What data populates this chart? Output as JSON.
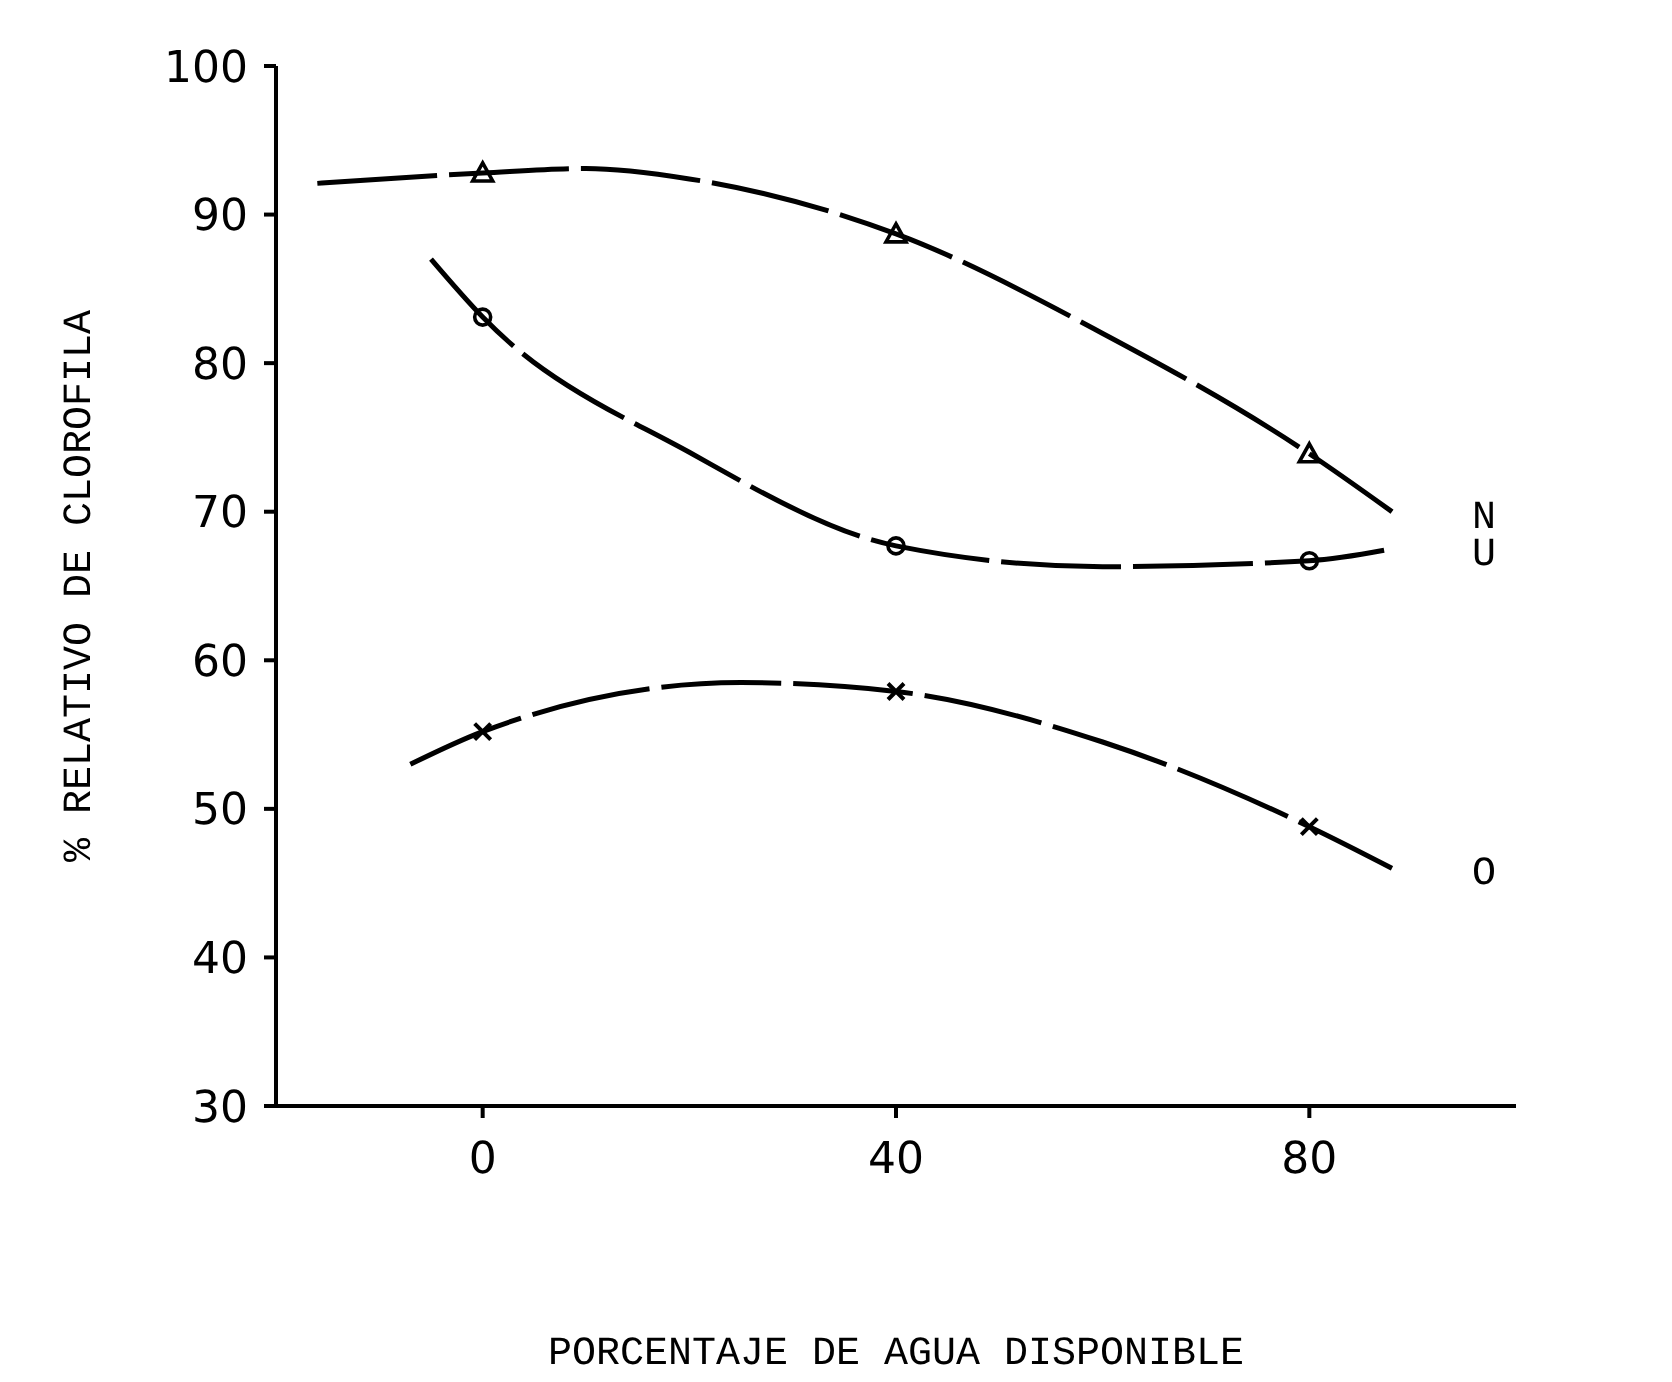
{
  "chart_data": {
    "type": "scatter",
    "xlabel": "PORCENTAJE DE AGUA DISPONIBLE",
    "ylabel": "% RELATIVO DE CLOROFILA",
    "xlim": [
      -20,
      100
    ],
    "xticks": [
      0,
      40,
      80
    ],
    "ylim": [
      30,
      100
    ],
    "yticks": [
      30,
      40,
      50,
      60,
      70,
      80,
      90,
      100
    ],
    "grid": false,
    "legend": false,
    "series": [
      {
        "color": "#000000",
        "marker": "triangle",
        "x": [
          0,
          40,
          80
        ],
        "values": [
          92.8,
          88.7,
          73.9
        ]
      },
      {
        "color": "#000000",
        "marker": "circle",
        "x": [
          0,
          40,
          80
        ],
        "values": [
          83.1,
          67.7,
          66.7
        ]
      },
      {
        "color": "#000000",
        "marker": "cross",
        "x": [
          0,
          40,
          80
        ],
        "values": [
          55.2,
          57.9,
          48.8
        ]
      },
      {
        "type": "line",
        "name": "N",
        "color": "#000000",
        "marker": "none",
        "line_style": "dashed",
        "x": [
          -16,
          0,
          10,
          20,
          40,
          60,
          80,
          88
        ],
        "values": [
          92.1,
          92.8,
          93.1,
          92.4,
          88.7,
          82,
          73.9,
          70
        ]
      },
      {
        "type": "line",
        "name": "U",
        "color": "#000000",
        "marker": "none",
        "line_style": "dashed",
        "x": [
          -5,
          0,
          20,
          40,
          60,
          80,
          88
        ],
        "values": [
          87,
          83.1,
          74,
          67.7,
          66.3,
          66.7,
          67.5
        ]
      },
      {
        "type": "line",
        "name": "O",
        "color": "#000000",
        "marker": "none",
        "line_style": "dashed",
        "x": [
          -7,
          0,
          25,
          40,
          60,
          80,
          88
        ],
        "values": [
          53,
          55.2,
          58.5,
          57.9,
          54.5,
          48.8,
          46
        ]
      }
    ]
  }
}
